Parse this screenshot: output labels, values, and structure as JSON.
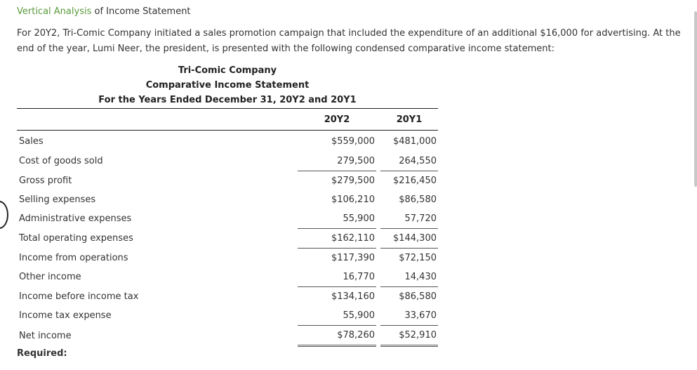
{
  "heading": {
    "link": "Vertical Analysis",
    "rest": " of Income Statement"
  },
  "intro": "For 20Y2, Tri-Comic Company initiated a sales promotion campaign that included the expenditure of an additional $16,000 for advertising. At the end of the year, Lumi Neer, the president, is presented with the following condensed comparative income statement:",
  "statement": {
    "company": "Tri-Comic Company",
    "title": "Comparative Income Statement",
    "period": "For the Years Ended December 31, 20Y2 and 20Y1",
    "columns": [
      "20Y2",
      "20Y1"
    ],
    "rows": [
      {
        "label": "Sales",
        "y2": "$559,000",
        "y1": "$481,000"
      },
      {
        "label": "Cost of goods sold",
        "y2": "279,500",
        "y1": "264,550"
      },
      {
        "label": "Gross profit",
        "y2": "$279,500",
        "y1": "$216,450"
      },
      {
        "label": "Selling expenses",
        "y2": "$106,210",
        "y1": "$86,580"
      },
      {
        "label": "Administrative expenses",
        "y2": "55,900",
        "y1": "57,720"
      },
      {
        "label": "Total operating expenses",
        "y2": "$162,110",
        "y1": "$144,300"
      },
      {
        "label": "Income from operations",
        "y2": "$117,390",
        "y1": "$72,150"
      },
      {
        "label": "Other income",
        "y2": "16,770",
        "y1": "14,430"
      },
      {
        "label": "Income before income tax",
        "y2": "$134,160",
        "y1": "$86,580"
      },
      {
        "label": "Income tax expense",
        "y2": "55,900",
        "y1": "33,670"
      },
      {
        "label": "Net income",
        "y2": "$78,260",
        "y1": "$52,910"
      }
    ]
  },
  "required_label": "Required:"
}
